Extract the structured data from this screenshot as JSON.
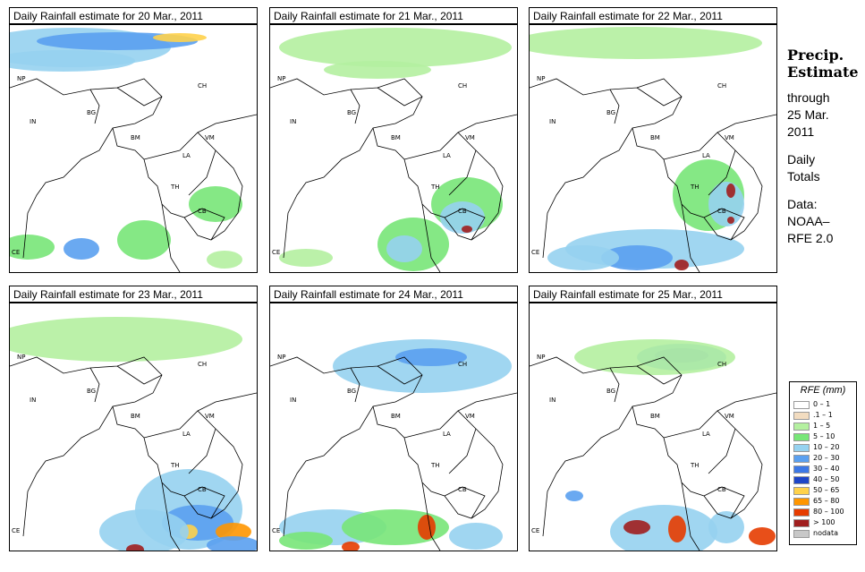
{
  "panels": [
    {
      "title": "Daily Rainfall estimate for  20 Mar., 2011"
    },
    {
      "title": "Daily Rainfall estimate for  21 Mar., 2011"
    },
    {
      "title": "Daily Rainfall estimate for  22 Mar., 2011"
    },
    {
      "title": "Daily Rainfall estimate for  23 Mar., 2011"
    },
    {
      "title": "Daily Rainfall estimate for  24 Mar., 2011"
    },
    {
      "title": "Daily Rainfall estimate for  25 Mar., 2011"
    }
  ],
  "map_labels": {
    "np": "NP",
    "ch": "CH",
    "in": "IN",
    "bg": "BG",
    "bm": "BM",
    "vm": "VM",
    "la": "LA",
    "th": "TH",
    "cb": "CB",
    "ce": "CE"
  },
  "side_panel": {
    "title_line1": "Precip.",
    "title_line2": "Estimate",
    "line1": "through",
    "line2": "25 Mar.",
    "line3": "2011",
    "line4": "Daily",
    "line5": "Totals",
    "line6": "Data:",
    "line7": "NOAA–",
    "line8": "RFE 2.0"
  },
  "legend": {
    "title": "RFE (mm)",
    "items": [
      {
        "label": "0 – 1",
        "color": "#ffffff"
      },
      {
        "label": ".1 – 1",
        "color": "#f2dcc0"
      },
      {
        "label": "1 – 5",
        "color": "#b4f0a0"
      },
      {
        "label": "5 – 10",
        "color": "#78e678"
      },
      {
        "label": "10 – 20",
        "color": "#96d2f0"
      },
      {
        "label": "20 – 30",
        "color": "#5aa0f0"
      },
      {
        "label": "30 – 40",
        "color": "#3c78e6"
      },
      {
        "label": "40 – 50",
        "color": "#1e46c8"
      },
      {
        "label": "50 – 65",
        "color": "#ffd24b"
      },
      {
        "label": "65 – 80",
        "color": "#ff9600"
      },
      {
        "label": "80 – 100",
        "color": "#e63c00"
      },
      {
        "label": "> 100",
        "color": "#a01e1e"
      },
      {
        "label": "nodata",
        "color": "#c8c8c8"
      }
    ]
  }
}
